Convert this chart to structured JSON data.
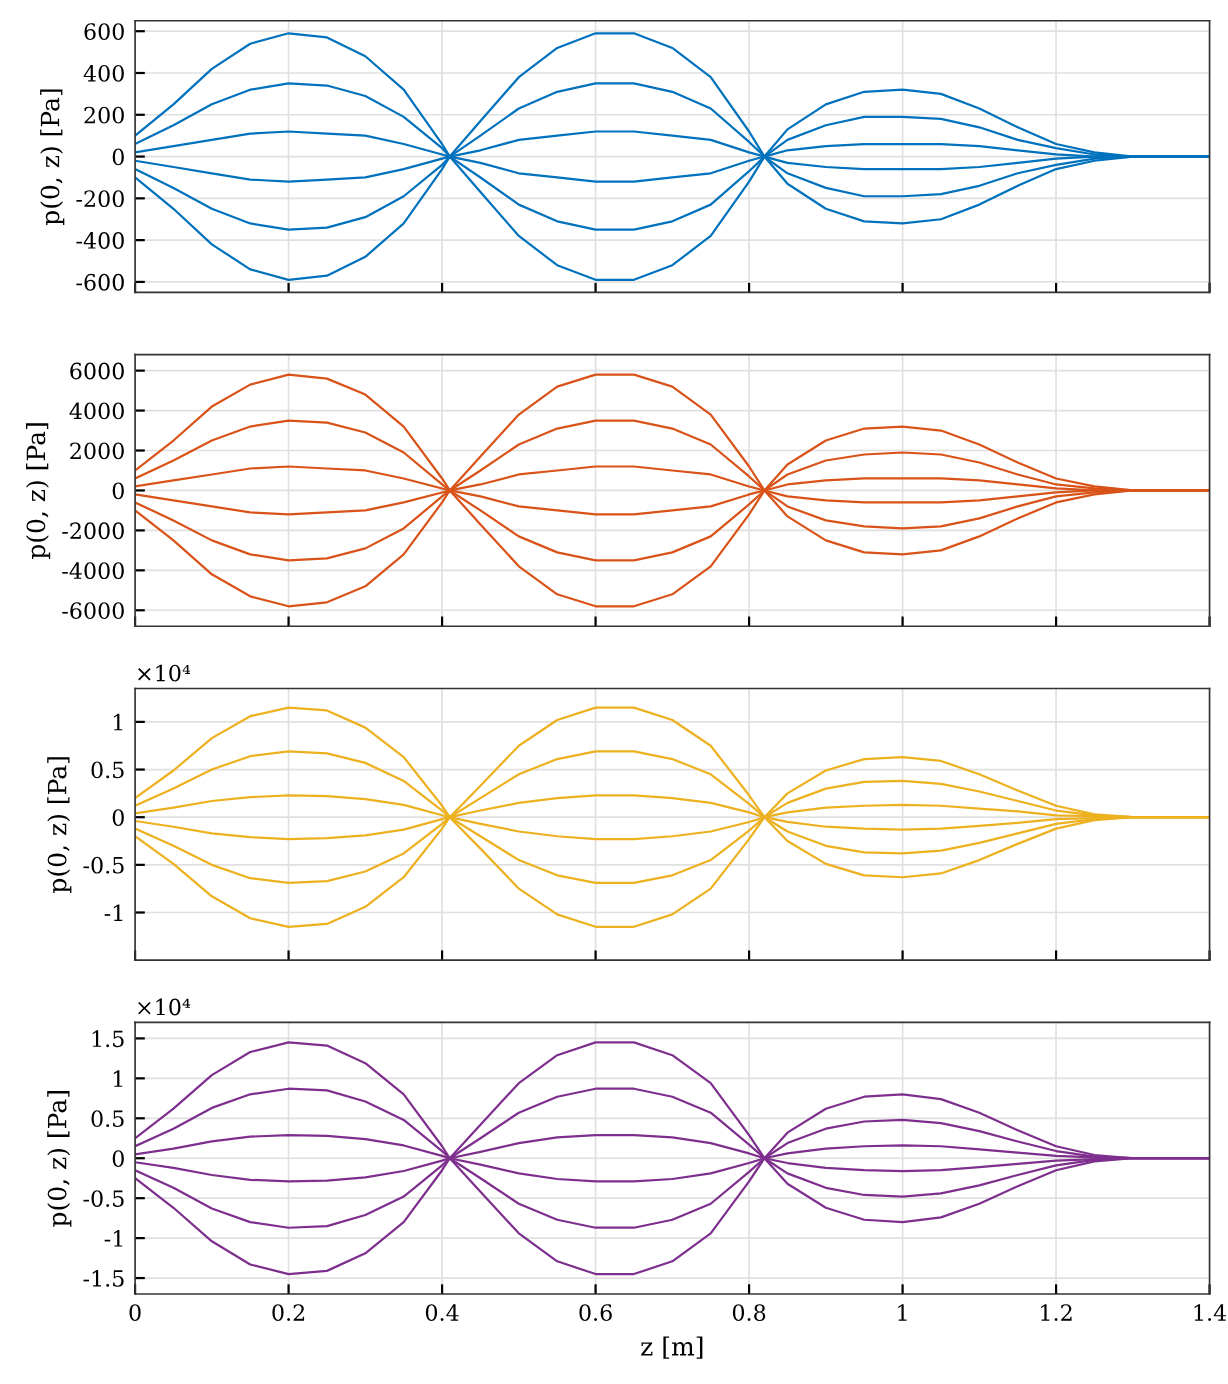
{
  "chart_data": [
    {
      "type": "line",
      "ylabel": "p(0, z) [Pa]",
      "x": [
        0,
        0.05,
        0.1,
        0.15,
        0.2,
        0.25,
        0.3,
        0.35,
        0.4,
        0.41,
        0.45,
        0.5,
        0.55,
        0.6,
        0.65,
        0.7,
        0.75,
        0.8,
        0.82,
        0.85,
        0.9,
        0.95,
        1.0,
        1.05,
        1.1,
        1.15,
        1.2,
        1.25,
        1.3,
        1.4
      ],
      "xlim": [
        0,
        1.4
      ],
      "xticks": [
        0,
        0.2,
        0.4,
        0.6,
        0.8,
        1,
        1.2,
        1.4
      ],
      "ylim": [
        -650,
        650
      ],
      "yticks": [
        -600,
        -400,
        -200,
        0,
        200,
        400,
        600
      ],
      "grid": true,
      "tick_labels": "y",
      "series": [
        {
          "color": "#0072bd",
          "values": [
            100,
            250,
            420,
            540,
            590,
            570,
            480,
            320,
            60,
            0,
            170,
            380,
            520,
            590,
            590,
            520,
            380,
            120,
            0,
            130,
            250,
            310,
            320,
            300,
            230,
            140,
            60,
            20,
            0,
            0
          ]
        },
        {
          "color": "#0072bd",
          "values": [
            60,
            150,
            250,
            320,
            350,
            340,
            290,
            190,
            40,
            0,
            100,
            230,
            310,
            350,
            350,
            310,
            230,
            70,
            0,
            80,
            150,
            190,
            190,
            180,
            140,
            80,
            40,
            10,
            0,
            0
          ]
        },
        {
          "color": "#0072bd",
          "values": [
            20,
            50,
            80,
            110,
            120,
            110,
            100,
            60,
            10,
            0,
            30,
            80,
            100,
            120,
            120,
            100,
            80,
            20,
            0,
            30,
            50,
            60,
            60,
            60,
            50,
            30,
            10,
            0,
            0,
            0
          ]
        },
        {
          "color": "#0072bd",
          "values": [
            -20,
            -50,
            -80,
            -110,
            -120,
            -110,
            -100,
            -60,
            -10,
            0,
            -30,
            -80,
            -100,
            -120,
            -120,
            -100,
            -80,
            -20,
            0,
            -30,
            -50,
            -60,
            -60,
            -60,
            -50,
            -30,
            -10,
            0,
            0,
            0
          ]
        },
        {
          "color": "#0072bd",
          "values": [
            -60,
            -150,
            -250,
            -320,
            -350,
            -340,
            -290,
            -190,
            -40,
            0,
            -100,
            -230,
            -310,
            -350,
            -350,
            -310,
            -230,
            -70,
            0,
            -80,
            -150,
            -190,
            -190,
            -180,
            -140,
            -80,
            -40,
            -10,
            0,
            0
          ]
        },
        {
          "color": "#0072bd",
          "values": [
            -100,
            -250,
            -420,
            -540,
            -590,
            -570,
            -480,
            -320,
            -60,
            0,
            -170,
            -380,
            -520,
            -590,
            -590,
            -520,
            -380,
            -120,
            0,
            -130,
            -250,
            -310,
            -320,
            -300,
            -230,
            -140,
            -60,
            -20,
            0,
            0
          ]
        }
      ]
    },
    {
      "type": "line",
      "ylabel": "p(0, z) [Pa]",
      "x": [
        0,
        0.05,
        0.1,
        0.15,
        0.2,
        0.25,
        0.3,
        0.35,
        0.4,
        0.41,
        0.45,
        0.5,
        0.55,
        0.6,
        0.65,
        0.7,
        0.75,
        0.8,
        0.82,
        0.85,
        0.9,
        0.95,
        1.0,
        1.05,
        1.1,
        1.15,
        1.2,
        1.25,
        1.3,
        1.4
      ],
      "xlim": [
        0,
        1.4
      ],
      "xticks": [
        0,
        0.2,
        0.4,
        0.6,
        0.8,
        1,
        1.2,
        1.4
      ],
      "ylim": [
        -6800,
        6800
      ],
      "yticks": [
        -6000,
        -4000,
        -2000,
        0,
        2000,
        4000,
        6000
      ],
      "grid": true,
      "tick_labels": "y",
      "series": [
        {
          "color": "#d95319",
          "values": [
            1000,
            2500,
            4200,
            5300,
            5800,
            5600,
            4800,
            3200,
            600,
            0,
            1700,
            3800,
            5200,
            5800,
            5800,
            5200,
            3800,
            1200,
            0,
            1300,
            2500,
            3100,
            3200,
            3000,
            2300,
            1400,
            600,
            200,
            0,
            0
          ]
        },
        {
          "color": "#d95319",
          "values": [
            600,
            1500,
            2500,
            3200,
            3500,
            3400,
            2900,
            1900,
            300,
            0,
            1000,
            2300,
            3100,
            3500,
            3500,
            3100,
            2300,
            700,
            0,
            800,
            1500,
            1800,
            1900,
            1800,
            1400,
            800,
            300,
            100,
            0,
            0
          ]
        },
        {
          "color": "#d95319",
          "values": [
            200,
            500,
            800,
            1100,
            1200,
            1100,
            1000,
            600,
            100,
            0,
            300,
            800,
            1000,
            1200,
            1200,
            1000,
            800,
            200,
            0,
            300,
            500,
            600,
            600,
            600,
            500,
            300,
            100,
            0,
            0,
            0
          ]
        },
        {
          "color": "#d95319",
          "values": [
            -200,
            -500,
            -800,
            -1100,
            -1200,
            -1100,
            -1000,
            -600,
            -100,
            0,
            -300,
            -800,
            -1000,
            -1200,
            -1200,
            -1000,
            -800,
            -200,
            0,
            -300,
            -500,
            -600,
            -600,
            -600,
            -500,
            -300,
            -100,
            0,
            0,
            0
          ]
        },
        {
          "color": "#d95319",
          "values": [
            -600,
            -1500,
            -2500,
            -3200,
            -3500,
            -3400,
            -2900,
            -1900,
            -300,
            0,
            -1000,
            -2300,
            -3100,
            -3500,
            -3500,
            -3100,
            -2300,
            -700,
            0,
            -800,
            -1500,
            -1800,
            -1900,
            -1800,
            -1400,
            -800,
            -300,
            -100,
            0,
            0
          ]
        },
        {
          "color": "#d95319",
          "values": [
            -1000,
            -2500,
            -4200,
            -5300,
            -5800,
            -5600,
            -4800,
            -3200,
            -600,
            0,
            -1700,
            -3800,
            -5200,
            -5800,
            -5800,
            -5200,
            -3800,
            -1200,
            0,
            -1300,
            -2500,
            -3100,
            -3200,
            -3000,
            -2300,
            -1400,
            -600,
            -200,
            0,
            0
          ]
        }
      ]
    },
    {
      "type": "line",
      "ylabel": "p(0, z) [Pa]",
      "annotations": [
        "×10⁴"
      ],
      "x": [
        0,
        0.05,
        0.1,
        0.15,
        0.2,
        0.25,
        0.3,
        0.35,
        0.4,
        0.41,
        0.45,
        0.5,
        0.55,
        0.6,
        0.65,
        0.7,
        0.75,
        0.8,
        0.82,
        0.85,
        0.9,
        0.95,
        1.0,
        1.05,
        1.1,
        1.15,
        1.2,
        1.25,
        1.3,
        1.4
      ],
      "xlim": [
        0,
        1.4
      ],
      "xticks": [
        0,
        0.2,
        0.4,
        0.6,
        0.8,
        1,
        1.2,
        1.4
      ],
      "ylim": [
        -1.5,
        1.35
      ],
      "yticks": [
        -1,
        -0.5,
        0,
        0.5,
        1
      ],
      "grid": true,
      "tick_labels": "y",
      "series": [
        {
          "color": "#edb120",
          "values": [
            0.2,
            0.49,
            0.83,
            1.06,
            1.15,
            1.12,
            0.94,
            0.63,
            0.12,
            0,
            0.33,
            0.75,
            1.02,
            1.15,
            1.15,
            1.02,
            0.75,
            0.23,
            0,
            0.25,
            0.49,
            0.61,
            0.63,
            0.59,
            0.45,
            0.28,
            0.12,
            0.03,
            0,
            0
          ]
        },
        {
          "color": "#edb120",
          "values": [
            0.12,
            0.3,
            0.5,
            0.64,
            0.69,
            0.67,
            0.57,
            0.38,
            0.07,
            0,
            0.2,
            0.45,
            0.61,
            0.69,
            0.69,
            0.61,
            0.45,
            0.14,
            0,
            0.15,
            0.3,
            0.37,
            0.38,
            0.35,
            0.27,
            0.17,
            0.07,
            0.02,
            0,
            0
          ]
        },
        {
          "color": "#edb120",
          "values": [
            0.04,
            0.1,
            0.17,
            0.21,
            0.23,
            0.22,
            0.19,
            0.13,
            0.02,
            0,
            0.07,
            0.15,
            0.2,
            0.23,
            0.23,
            0.2,
            0.15,
            0.05,
            0,
            0.05,
            0.1,
            0.12,
            0.13,
            0.12,
            0.09,
            0.06,
            0.02,
            0.01,
            0,
            0
          ]
        },
        {
          "color": "#edb120",
          "values": [
            -0.04,
            -0.1,
            -0.17,
            -0.21,
            -0.23,
            -0.22,
            -0.19,
            -0.13,
            -0.02,
            0,
            -0.07,
            -0.15,
            -0.2,
            -0.23,
            -0.23,
            -0.2,
            -0.15,
            -0.05,
            0,
            -0.05,
            -0.1,
            -0.12,
            -0.13,
            -0.12,
            -0.09,
            -0.06,
            -0.02,
            -0.01,
            0,
            0
          ]
        },
        {
          "color": "#edb120",
          "values": [
            -0.12,
            -0.3,
            -0.5,
            -0.64,
            -0.69,
            -0.67,
            -0.57,
            -0.38,
            -0.07,
            0,
            -0.2,
            -0.45,
            -0.61,
            -0.69,
            -0.69,
            -0.61,
            -0.45,
            -0.14,
            0,
            -0.15,
            -0.3,
            -0.37,
            -0.38,
            -0.35,
            -0.27,
            -0.17,
            -0.07,
            -0.02,
            0,
            0
          ]
        },
        {
          "color": "#edb120",
          "values": [
            -0.2,
            -0.49,
            -0.83,
            -1.06,
            -1.15,
            -1.12,
            -0.94,
            -0.63,
            -0.12,
            0,
            -0.33,
            -0.75,
            -1.02,
            -1.15,
            -1.15,
            -1.02,
            -0.75,
            -0.23,
            0,
            -0.25,
            -0.49,
            -0.61,
            -0.63,
            -0.59,
            -0.45,
            -0.28,
            -0.12,
            -0.03,
            0,
            0
          ]
        }
      ]
    },
    {
      "type": "line",
      "ylabel": "p(0, z) [Pa]",
      "xlabel": "z [m]",
      "annotations": [
        "×10⁴"
      ],
      "x": [
        0,
        0.05,
        0.1,
        0.15,
        0.2,
        0.25,
        0.3,
        0.35,
        0.4,
        0.41,
        0.45,
        0.5,
        0.55,
        0.6,
        0.65,
        0.7,
        0.75,
        0.8,
        0.82,
        0.85,
        0.9,
        0.95,
        1.0,
        1.05,
        1.1,
        1.15,
        1.2,
        1.25,
        1.3,
        1.4
      ],
      "xlim": [
        0,
        1.4
      ],
      "xticks": [
        0,
        0.2,
        0.4,
        0.6,
        0.8,
        1,
        1.2,
        1.4
      ],
      "ylim": [
        -1.7,
        1.7
      ],
      "yticks": [
        -1.5,
        -1,
        -0.5,
        0,
        0.5,
        1,
        1.5
      ],
      "grid": true,
      "series": [
        {
          "color": "#7e2f8e",
          "values": [
            0.25,
            0.62,
            1.04,
            1.33,
            1.45,
            1.41,
            1.19,
            0.8,
            0.15,
            0,
            0.42,
            0.94,
            1.29,
            1.45,
            1.45,
            1.29,
            0.94,
            0.29,
            0,
            0.32,
            0.62,
            0.77,
            0.8,
            0.74,
            0.57,
            0.35,
            0.15,
            0.04,
            0,
            0
          ]
        },
        {
          "color": "#7e2f8e",
          "values": [
            0.15,
            0.37,
            0.63,
            0.8,
            0.87,
            0.85,
            0.71,
            0.48,
            0.09,
            0,
            0.25,
            0.57,
            0.77,
            0.87,
            0.87,
            0.77,
            0.57,
            0.17,
            0,
            0.19,
            0.37,
            0.46,
            0.48,
            0.44,
            0.34,
            0.21,
            0.09,
            0.02,
            0,
            0
          ]
        },
        {
          "color": "#7e2f8e",
          "values": [
            0.05,
            0.12,
            0.21,
            0.27,
            0.29,
            0.28,
            0.24,
            0.16,
            0.03,
            0,
            0.08,
            0.19,
            0.26,
            0.29,
            0.29,
            0.26,
            0.19,
            0.06,
            0,
            0.06,
            0.12,
            0.15,
            0.16,
            0.15,
            0.11,
            0.07,
            0.03,
            0.01,
            0,
            0
          ]
        },
        {
          "color": "#7e2f8e",
          "values": [
            -0.05,
            -0.12,
            -0.21,
            -0.27,
            -0.29,
            -0.28,
            -0.24,
            -0.16,
            -0.03,
            0,
            -0.08,
            -0.19,
            -0.26,
            -0.29,
            -0.29,
            -0.26,
            -0.19,
            -0.06,
            0,
            -0.06,
            -0.12,
            -0.15,
            -0.16,
            -0.15,
            -0.11,
            -0.07,
            -0.03,
            -0.01,
            0,
            0
          ]
        },
        {
          "color": "#7e2f8e",
          "values": [
            -0.15,
            -0.37,
            -0.63,
            -0.8,
            -0.87,
            -0.85,
            -0.71,
            -0.48,
            -0.09,
            0,
            -0.25,
            -0.57,
            -0.77,
            -0.87,
            -0.87,
            -0.77,
            -0.57,
            -0.17,
            0,
            -0.19,
            -0.37,
            -0.46,
            -0.48,
            -0.44,
            -0.34,
            -0.21,
            -0.09,
            -0.02,
            0,
            0
          ]
        },
        {
          "color": "#7e2f8e",
          "values": [
            -0.25,
            -0.62,
            -1.04,
            -1.33,
            -1.45,
            -1.41,
            -1.19,
            -0.8,
            -0.15,
            0,
            -0.42,
            -0.94,
            -1.29,
            -1.45,
            -1.45,
            -1.29,
            -0.94,
            -0.29,
            0,
            -0.32,
            -0.62,
            -0.77,
            -0.8,
            -0.74,
            -0.57,
            -0.35,
            -0.15,
            -0.04,
            0,
            0
          ]
        }
      ]
    }
  ]
}
